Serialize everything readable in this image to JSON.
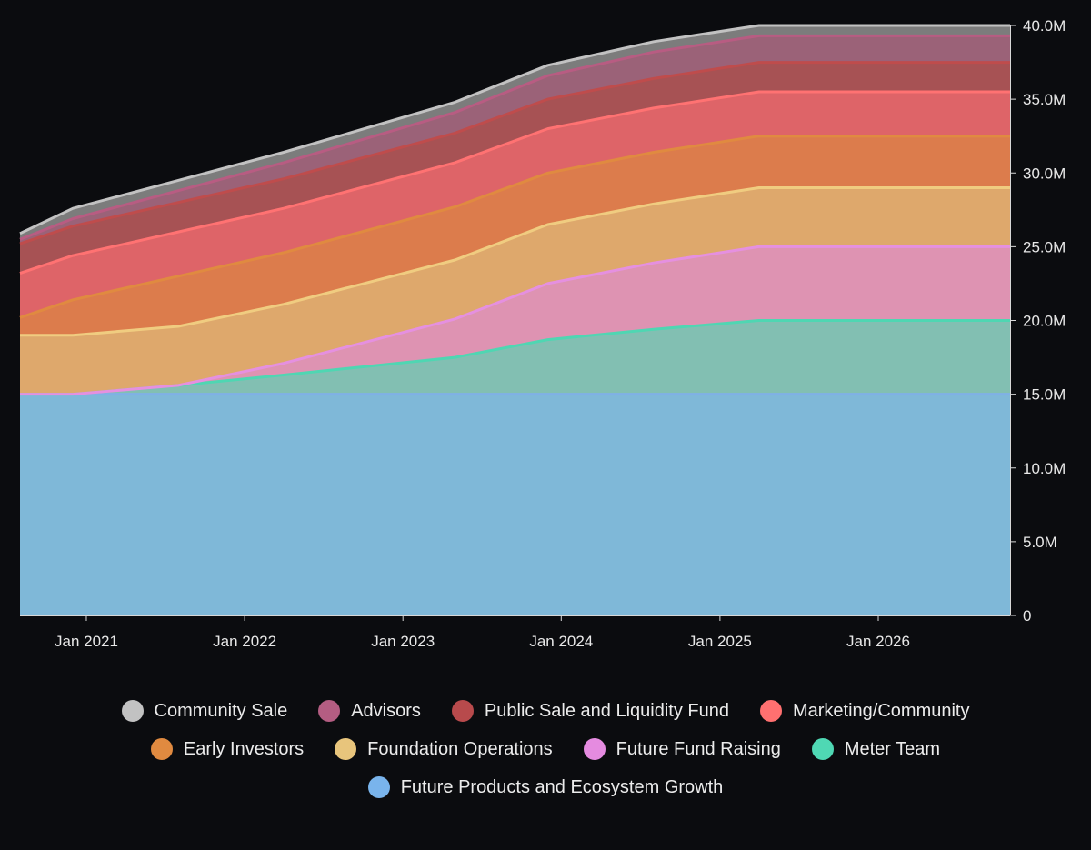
{
  "chart_data": {
    "type": "area",
    "stacked": true,
    "x": [
      "2020-08-01",
      "2020-12-01",
      "2021-08-01",
      "2022-04-01",
      "2023-05-01",
      "2023-12-01",
      "2024-08-01",
      "2025-04-01",
      "2026-01-01",
      "2026-11-01"
    ],
    "x_ticks": [
      {
        "date": "2021-01-01",
        "label": "Jan 2021"
      },
      {
        "date": "2022-01-01",
        "label": "Jan 2022"
      },
      {
        "date": "2023-01-01",
        "label": "Jan 2023"
      },
      {
        "date": "2024-01-01",
        "label": "Jan 2024"
      },
      {
        "date": "2025-01-01",
        "label": "Jan 2025"
      },
      {
        "date": "2026-01-01",
        "label": "Jan 2026"
      }
    ],
    "y_ticks": [
      {
        "value": 0,
        "label": "0"
      },
      {
        "value": 5000000,
        "label": "5.0M"
      },
      {
        "value": 10000000,
        "label": "10.0M"
      },
      {
        "value": 15000000,
        "label": "15.0M"
      },
      {
        "value": 20000000,
        "label": "20.0M"
      },
      {
        "value": 25000000,
        "label": "25.0M"
      },
      {
        "value": 30000000,
        "label": "30.0M"
      },
      {
        "value": 35000000,
        "label": "35.0M"
      },
      {
        "value": 40000000,
        "label": "40.0M"
      }
    ],
    "ylim": [
      0,
      40000000
    ],
    "xlim": [
      "2020-08-01",
      "2026-11-01"
    ],
    "grid": false,
    "y_axis_position": "right",
    "legend_position": "bottom",
    "series": [
      {
        "name": "Future Products and Ecosystem Growth",
        "color": "#7fb8d8",
        "line": "#7fb0e6",
        "values": [
          15000000,
          15000000,
          15000000,
          15000000,
          15000000,
          15000000,
          15000000,
          15000000,
          15000000,
          15000000
        ]
      },
      {
        "name": "Meter Team",
        "color": "#82bfb2",
        "line": "#4fd6b2",
        "values": [
          0,
          0,
          600000,
          1300000,
          2500000,
          3700000,
          4400000,
          5000000,
          5000000,
          5000000
        ]
      },
      {
        "name": "Future Fund Raising",
        "color": "#de93b2",
        "line": "#e590e0",
        "values": [
          0,
          0,
          0,
          800000,
          2600000,
          3800000,
          4500000,
          5000000,
          5000000,
          5000000
        ]
      },
      {
        "name": "Foundation Operations",
        "color": "#dea86c",
        "line": "#f0cc80",
        "values": [
          4000000,
          4000000,
          4000000,
          4000000,
          4000000,
          4000000,
          4000000,
          4000000,
          4000000,
          4000000
        ]
      },
      {
        "name": "Early Investors",
        "color": "#dc7c4c",
        "line": "#e08a40",
        "values": [
          1200000,
          2400000,
          3400000,
          3500000,
          3600000,
          3500000,
          3500000,
          3500000,
          3500000,
          3500000
        ]
      },
      {
        "name": "Marketing/Community",
        "color": "#de6468",
        "line": "#ff7272",
        "values": [
          3000000,
          3000000,
          3000000,
          3000000,
          3000000,
          3000000,
          3000000,
          3000000,
          3000000,
          3000000
        ]
      },
      {
        "name": "Public Sale and Liquidity Fund",
        "color": "#a75254",
        "line": "#bf4c4c",
        "values": [
          2000000,
          2000000,
          2000000,
          2000000,
          2000000,
          2000000,
          2000000,
          2000000,
          2000000,
          2000000
        ]
      },
      {
        "name": "Advisors",
        "color": "#9b6278",
        "line": "#b85c82",
        "values": [
          300000,
          500000,
          800000,
          1100000,
          1400000,
          1600000,
          1800000,
          1800000,
          1800000,
          1800000
        ]
      },
      {
        "name": "Community Sale",
        "color": "#7c7c7c",
        "line": "#c2c2c2",
        "values": [
          400000,
          700000,
          700000,
          700000,
          700000,
          700000,
          700000,
          700000,
          700000,
          700000
        ]
      }
    ],
    "legend_rows": [
      [
        "Community Sale",
        "Advisors",
        "Public Sale and Liquidity Fund",
        "Marketing/Community"
      ],
      [
        "Early Investors",
        "Foundation Operations",
        "Future Fund Raising",
        "Meter Team"
      ],
      [
        "Future Products and Ecosystem Growth"
      ]
    ],
    "legend_colors": {
      "Community Sale": "#c2c2c2",
      "Advisors": "#b45d82",
      "Public Sale and Liquidity Fund": "#b84a4c",
      "Marketing/Community": "#ff7070",
      "Early Investors": "#e08a40",
      "Foundation Operations": "#e8c57c",
      "Future Fund Raising": "#e58be0",
      "Meter Team": "#4fd8b4",
      "Future Products and Ecosystem Growth": "#79b4ec"
    }
  }
}
